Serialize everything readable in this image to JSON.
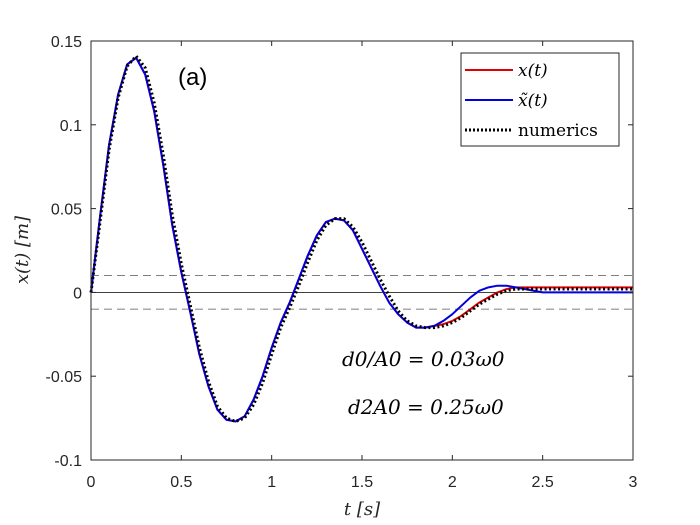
{
  "chart_data": {
    "type": "line",
    "panel_label": "(a)",
    "xlabel": "t [s]",
    "ylabel": "x(t) [m]",
    "xlim": [
      0,
      3
    ],
    "ylim": [
      -0.1,
      0.15
    ],
    "xticks": [
      0,
      0.5,
      1,
      1.5,
      2,
      2.5,
      3
    ],
    "xtick_labels": [
      "0",
      "0.5",
      "1",
      "1.5",
      "2",
      "2.5",
      "3"
    ],
    "yticks": [
      -0.1,
      -0.05,
      0,
      0.05,
      0.1,
      0.15
    ],
    "ytick_labels": [
      "-0.1",
      "-0.05",
      "0",
      "0.05",
      "0.1",
      "0.15"
    ],
    "grid": false,
    "legend_position": "top-right",
    "reference_lines": [
      {
        "y": 0,
        "style": "solid",
        "color": "#000000"
      },
      {
        "y": 0.01,
        "style": "dashed",
        "color": "#000000"
      },
      {
        "y": -0.01,
        "style": "dashed",
        "color": "#000000"
      }
    ],
    "annotations": [
      "d0/A0 = 0.03ω0",
      "d2A0 = 0.25ω0"
    ],
    "series": [
      {
        "name": "x(t)",
        "color": "#e00000",
        "style": "solid",
        "x": [
          0,
          0.05,
          0.1,
          0.15,
          0.2,
          0.25,
          0.3,
          0.35,
          0.4,
          0.45,
          0.5,
          0.55,
          0.6,
          0.65,
          0.7,
          0.75,
          0.8,
          0.85,
          0.9,
          0.95,
          1.0,
          1.05,
          1.1,
          1.15,
          1.2,
          1.25,
          1.3,
          1.35,
          1.4,
          1.45,
          1.5,
          1.55,
          1.6,
          1.65,
          1.7,
          1.75,
          1.8,
          1.85,
          1.9,
          1.95,
          2.0,
          2.05,
          2.1,
          2.15,
          2.2,
          2.25,
          2.3,
          2.35,
          2.4,
          2.45,
          2.5,
          2.55,
          2.6,
          3.0
        ],
        "y": [
          0,
          0.045,
          0.088,
          0.118,
          0.136,
          0.14,
          0.13,
          0.108,
          0.076,
          0.04,
          0.012,
          -0.012,
          -0.037,
          -0.056,
          -0.07,
          -0.076,
          -0.077,
          -0.074,
          -0.064,
          -0.05,
          -0.033,
          -0.018,
          -0.006,
          0.008,
          0.022,
          0.034,
          0.042,
          0.044,
          0.043,
          0.037,
          0.026,
          0.015,
          0.004,
          -0.006,
          -0.013,
          -0.018,
          -0.021,
          -0.021,
          -0.02,
          -0.019,
          -0.017,
          -0.014,
          -0.01,
          -0.006,
          -0.003,
          0,
          0.002,
          0.003,
          0.003,
          0.003,
          0.003,
          0.003,
          0.003,
          0.003
        ]
      },
      {
        "name": "x̃(t)",
        "color": "#0000e0",
        "style": "solid",
        "x": [
          0,
          0.05,
          0.1,
          0.15,
          0.2,
          0.25,
          0.3,
          0.35,
          0.4,
          0.45,
          0.5,
          0.55,
          0.6,
          0.65,
          0.7,
          0.75,
          0.8,
          0.85,
          0.9,
          0.95,
          1.0,
          1.05,
          1.1,
          1.15,
          1.2,
          1.25,
          1.3,
          1.35,
          1.4,
          1.45,
          1.5,
          1.55,
          1.6,
          1.65,
          1.7,
          1.75,
          1.8,
          1.85,
          1.9,
          1.95,
          2.0,
          2.05,
          2.1,
          2.15,
          2.2,
          2.25,
          2.3,
          2.35,
          2.4,
          2.45,
          2.5,
          2.55,
          2.6,
          3.0
        ],
        "y": [
          0,
          0.045,
          0.088,
          0.118,
          0.136,
          0.14,
          0.13,
          0.108,
          0.076,
          0.04,
          0.012,
          -0.012,
          -0.037,
          -0.056,
          -0.07,
          -0.076,
          -0.077,
          -0.074,
          -0.064,
          -0.05,
          -0.033,
          -0.018,
          -0.006,
          0.008,
          0.022,
          0.034,
          0.042,
          0.044,
          0.043,
          0.037,
          0.026,
          0.015,
          0.004,
          -0.006,
          -0.013,
          -0.018,
          -0.021,
          -0.021,
          -0.02,
          -0.017,
          -0.013,
          -0.008,
          -0.003,
          0.001,
          0.003,
          0.004,
          0.004,
          0.003,
          0.002,
          0.001,
          0,
          0,
          0,
          0
        ]
      },
      {
        "name": "numerics",
        "color": "#000000",
        "style": "dotted",
        "x": [
          0,
          0.05,
          0.1,
          0.15,
          0.2,
          0.25,
          0.3,
          0.35,
          0.4,
          0.45,
          0.5,
          0.55,
          0.6,
          0.65,
          0.7,
          0.75,
          0.8,
          0.85,
          0.9,
          0.95,
          1.0,
          1.05,
          1.1,
          1.15,
          1.2,
          1.25,
          1.3,
          1.35,
          1.4,
          1.45,
          1.5,
          1.55,
          1.6,
          1.65,
          1.7,
          1.75,
          1.8,
          1.85,
          1.9,
          1.95,
          2.0,
          2.05,
          2.1,
          2.15,
          2.2,
          2.25,
          2.3,
          2.35,
          2.4,
          2.45,
          2.5,
          2.55,
          2.6,
          3.0
        ],
        "y": [
          0,
          0.042,
          0.085,
          0.116,
          0.135,
          0.141,
          0.134,
          0.113,
          0.082,
          0.046,
          0.017,
          -0.008,
          -0.033,
          -0.053,
          -0.068,
          -0.075,
          -0.077,
          -0.075,
          -0.067,
          -0.054,
          -0.037,
          -0.021,
          -0.009,
          0.004,
          0.018,
          0.031,
          0.04,
          0.044,
          0.044,
          0.039,
          0.03,
          0.019,
          0.008,
          -0.002,
          -0.011,
          -0.017,
          -0.02,
          -0.021,
          -0.021,
          -0.02,
          -0.018,
          -0.015,
          -0.011,
          -0.007,
          -0.004,
          -0.001,
          0.001,
          0.002,
          0.002,
          0.002,
          0.002,
          0.002,
          0.002,
          0.002
        ]
      }
    ]
  }
}
